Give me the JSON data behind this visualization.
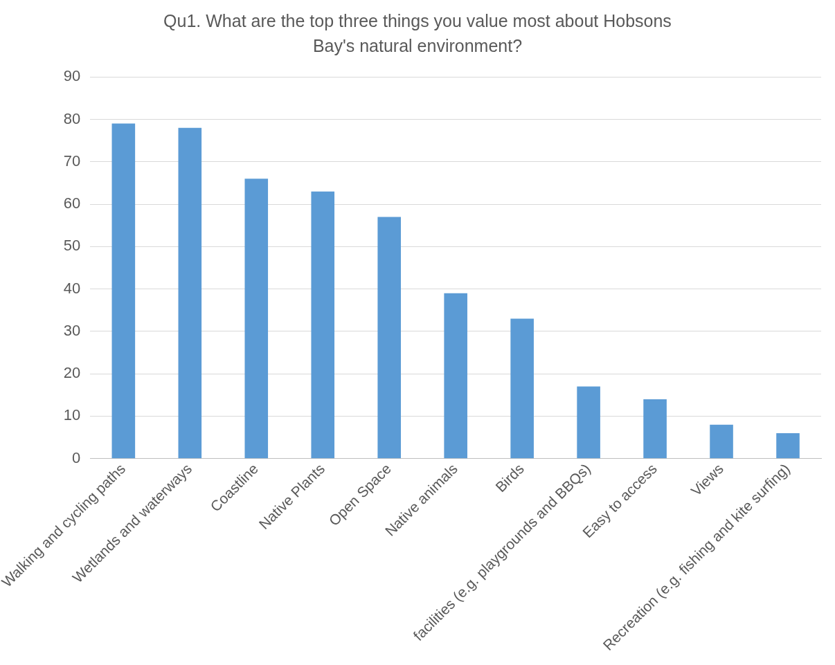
{
  "chart_data": {
    "type": "bar",
    "title": "Qu1. What are the top three things you value most about Hobsons Bay's natural environment?",
    "categories": [
      "Walking and cycling paths",
      "Wetlands and waterways",
      "Coastline",
      "Native Plants",
      "Open Space",
      "Native animals",
      "Birds",
      "facilities (e.g. playgrounds and BBQs)",
      "Easy to access",
      "Views",
      "Recreation (e.g. fishing and kite surfing)"
    ],
    "values": [
      79,
      78,
      66,
      63,
      57,
      39,
      33,
      17,
      14,
      8,
      6
    ],
    "color": "#5b9bd5",
    "ylim": [
      0,
      90
    ],
    "yticks": [
      0,
      10,
      20,
      30,
      40,
      50,
      60,
      70,
      80,
      90
    ],
    "grid": "y",
    "legend": false
  }
}
